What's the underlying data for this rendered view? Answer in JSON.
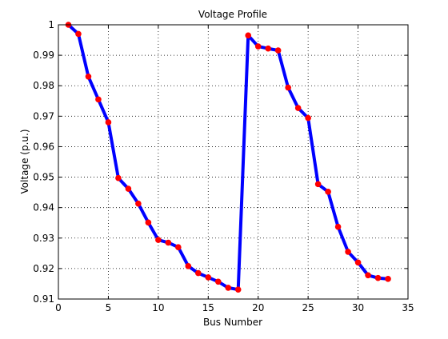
{
  "chart_data": {
    "type": "line",
    "title": "Voltage Profile",
    "xlabel": "Bus Number",
    "ylabel": "Voltage (p.u.)",
    "xlim": [
      0,
      35
    ],
    "ylim": [
      0.91,
      1.0
    ],
    "xticks": [
      0,
      5,
      10,
      15,
      20,
      25,
      30,
      35
    ],
    "yticks": [
      0.91,
      0.92,
      0.93,
      0.94,
      0.95,
      0.96,
      0.97,
      0.98,
      0.99,
      1.0
    ],
    "xtick_labels": [
      "0",
      "5",
      "10",
      "15",
      "20",
      "25",
      "30",
      "35"
    ],
    "ytick_labels": [
      "0.91",
      "0.92",
      "0.93",
      "0.94",
      "0.95",
      "0.96",
      "0.97",
      "0.98",
      "0.99",
      "1"
    ],
    "grid": "dotted",
    "legend": "none",
    "series": [
      {
        "line_color": "#0000ff",
        "marker_color": "#ff0000",
        "x": [
          1,
          2,
          3,
          4,
          5,
          6,
          7,
          8,
          9,
          10,
          11,
          12,
          13,
          14,
          15,
          16,
          17,
          18,
          19,
          20,
          21,
          22,
          23,
          24,
          25,
          26,
          27,
          28,
          29,
          30,
          31,
          32,
          33
        ],
        "y": [
          1.0,
          0.997,
          0.983,
          0.9755,
          0.968,
          0.9497,
          0.9462,
          0.9413,
          0.9351,
          0.9294,
          0.9285,
          0.927,
          0.9208,
          0.9185,
          0.9171,
          0.9157,
          0.9137,
          0.9131,
          0.9965,
          0.9929,
          0.9922,
          0.9916,
          0.9794,
          0.9727,
          0.9694,
          0.9477,
          0.9452,
          0.9337,
          0.9255,
          0.922,
          0.9178,
          0.9169,
          0.9166
        ]
      }
    ]
  }
}
